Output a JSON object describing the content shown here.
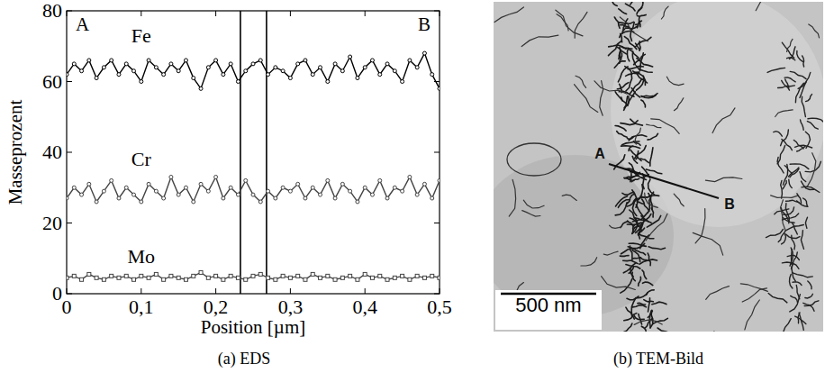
{
  "chart_data": {
    "type": "line",
    "y_label": "Masseprozent",
    "x_label": "Position [µm]",
    "x": [
      0,
      0.01,
      0.02,
      0.03,
      0.04,
      0.05,
      0.06,
      0.07,
      0.08,
      0.09,
      0.1,
      0.11,
      0.12,
      0.13,
      0.14,
      0.15,
      0.16,
      0.17,
      0.18,
      0.19,
      0.2,
      0.21,
      0.22,
      0.23,
      0.24,
      0.25,
      0.26,
      0.27,
      0.28,
      0.29,
      0.3,
      0.31,
      0.32,
      0.33,
      0.34,
      0.35,
      0.36,
      0.37,
      0.38,
      0.39,
      0.4,
      0.41,
      0.42,
      0.43,
      0.44,
      0.45,
      0.46,
      0.47,
      0.48,
      0.49,
      0.5
    ],
    "series": [
      {
        "name": "Fe",
        "color": "#000000",
        "marker": "circle",
        "values": [
          62,
          65,
          63,
          66,
          61,
          64,
          66,
          62,
          65,
          63,
          60,
          66,
          64,
          62,
          65,
          63,
          66,
          61,
          58,
          64,
          66,
          62,
          65,
          60,
          63,
          65,
          66,
          62,
          64,
          63,
          61,
          65,
          66,
          62,
          64,
          60,
          65,
          63,
          67,
          61,
          64,
          66,
          62,
          65,
          63,
          60,
          66,
          64,
          68,
          62,
          58
        ]
      },
      {
        "name": "Cr",
        "color": "#444444",
        "marker": "circle",
        "values": [
          27,
          30,
          28,
          31,
          26,
          29,
          32,
          27,
          30,
          28,
          26,
          31,
          29,
          27,
          33,
          28,
          30,
          26,
          31,
          29,
          33,
          27,
          30,
          28,
          32,
          28,
          26,
          29,
          27,
          30,
          29,
          31,
          27,
          30,
          28,
          32,
          27,
          31,
          29,
          26,
          30,
          28,
          32,
          27,
          30,
          29,
          33,
          28,
          31,
          27,
          32
        ]
      },
      {
        "name": "Mo",
        "color": "#444444",
        "marker": "square",
        "values": [
          4.5,
          5,
          4,
          5.5,
          4.5,
          4,
          5,
          4.5,
          5,
          4,
          5,
          4.5,
          5.5,
          4,
          5,
          4.5,
          4,
          5,
          6,
          4.5,
          5,
          4,
          5,
          4.5,
          4,
          5,
          5.5,
          4.5,
          4,
          5,
          4.5,
          5,
          4,
          5.5,
          4.5,
          5,
          4,
          4.5,
          5,
          4,
          5.5,
          4.5,
          5,
          4,
          4.5,
          5,
          4,
          5,
          4.5,
          5,
          4.5
        ]
      }
    ],
    "xlim": [
      0,
      0.5
    ],
    "xticks": [
      0,
      {
        "value": 0.1,
        "label": "0,1"
      },
      {
        "value": 0.2,
        "label": "0,2"
      },
      {
        "value": 0.3,
        "label": "0,3"
      },
      {
        "value": 0.4,
        "label": "0,4"
      },
      {
        "value": 0.5,
        "label": "0,5"
      }
    ],
    "ylim": [
      0,
      80
    ],
    "yticks": [
      0,
      20,
      40,
      60,
      80
    ],
    "vertical_lines": [
      0.233,
      0.268
    ],
    "annotations": [
      "A",
      "B"
    ],
    "grid": false
  },
  "captions": [
    "(a) EDS",
    "(b) TEM-Bild"
  ],
  "image": {
    "labels": [
      "A",
      "B"
    ],
    "scale_bar": "500 nm"
  }
}
